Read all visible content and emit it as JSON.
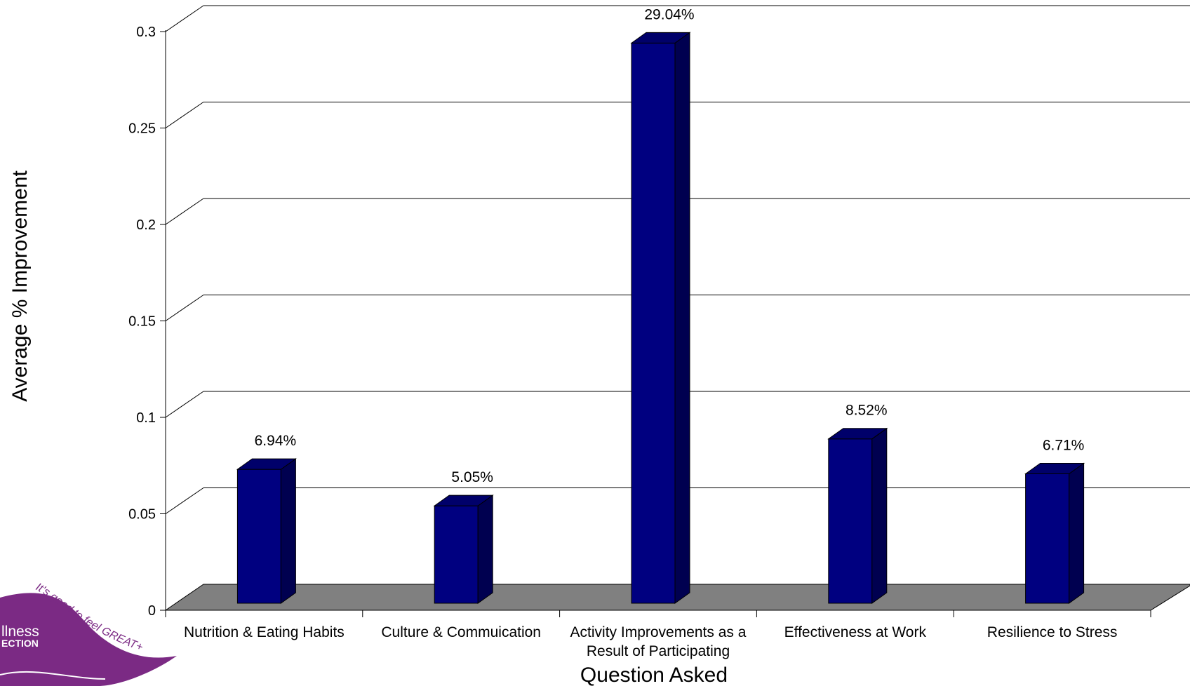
{
  "chart_data": {
    "type": "bar",
    "xlabel": "Question Asked",
    "ylabel": "Average % Improvement",
    "ylim": [
      0,
      0.3
    ],
    "yticks": [
      "0",
      "0.05",
      "0.1",
      "0.15",
      "0.2",
      "0.25",
      "0.3"
    ],
    "categories": [
      [
        "Nutrition & Eating Habits"
      ],
      [
        "Culture & Commuication"
      ],
      [
        "Activity Improvements as a",
        "Result of Participating"
      ],
      [
        "Effectiveness at Work"
      ],
      [
        "Resilience to Stress"
      ]
    ],
    "values": [
      0.0694,
      0.0505,
      0.2904,
      0.0852,
      0.0671
    ],
    "data_labels": [
      "6.94%",
      "5.05%",
      "29.04%",
      "8.52%",
      "6.71%"
    ],
    "grid": true,
    "bar_style": "3d",
    "colors": {
      "bar_front": "#000080",
      "bar_side": "#000050",
      "bar_top": "#00006a",
      "floor": "#808080"
    }
  },
  "logo": {
    "tagline": "It's good to feel GREAT+",
    "line1": "llness",
    "line2": "ECTION",
    "color": "#7b2a84"
  }
}
